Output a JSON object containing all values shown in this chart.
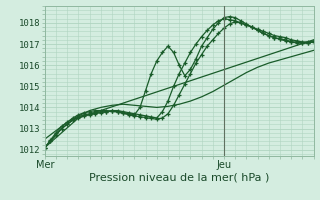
{
  "xlabel": "Pression niveau de la mer( hPa )",
  "background_color": "#d4ede0",
  "grid_color": "#b0d4c0",
  "line_color": "#1a5c2a",
  "vline_color": "#607060",
  "ylim": [
    1011.7,
    1018.8
  ],
  "xlim": [
    0,
    48
  ],
  "yticks": [
    1012,
    1013,
    1014,
    1015,
    1016,
    1017,
    1018
  ],
  "xtick_positions": [
    0,
    32
  ],
  "xtick_labels": [
    "Mer",
    "Jeu"
  ],
  "vline_x": 32,
  "series": [
    {
      "x": [
        0,
        1,
        2,
        3,
        4,
        5,
        6,
        7,
        8,
        9,
        10,
        11,
        12,
        13,
        14,
        15,
        16,
        17,
        18,
        19,
        20,
        21,
        22,
        23,
        24,
        25,
        26,
        27,
        28,
        29,
        30,
        31,
        32,
        33,
        34,
        35,
        36,
        37,
        38,
        39,
        40,
        41,
        42,
        43,
        44,
        45,
        46,
        47,
        48
      ],
      "y": [
        1012.1,
        1012.4,
        1012.7,
        1013.0,
        1013.2,
        1013.4,
        1013.5,
        1013.6,
        1013.65,
        1013.7,
        1013.75,
        1013.8,
        1013.85,
        1013.85,
        1013.8,
        1013.75,
        1013.7,
        1013.65,
        1013.6,
        1013.55,
        1013.5,
        1013.8,
        1014.3,
        1015.0,
        1015.6,
        1016.1,
        1016.6,
        1017.0,
        1017.35,
        1017.65,
        1017.9,
        1018.1,
        1018.2,
        1018.15,
        1018.1,
        1018.0,
        1017.9,
        1017.8,
        1017.7,
        1017.6,
        1017.5,
        1017.4,
        1017.35,
        1017.3,
        1017.2,
        1017.15,
        1017.1,
        1017.1,
        1017.15
      ],
      "marker": true
    },
    {
      "x": [
        0,
        1,
        2,
        3,
        4,
        5,
        6,
        7,
        8,
        9,
        10,
        11,
        12,
        13,
        14,
        15,
        16,
        17,
        18,
        19,
        20,
        21,
        22,
        23,
        24,
        25,
        26,
        27,
        28,
        29,
        30,
        31,
        32,
        33,
        34,
        35,
        36,
        37,
        38,
        39,
        40,
        41,
        42,
        43,
        44,
        45,
        46,
        47,
        48
      ],
      "y": [
        1012.1,
        1012.4,
        1012.7,
        1013.0,
        1013.2,
        1013.4,
        1013.55,
        1013.65,
        1013.7,
        1013.75,
        1013.78,
        1013.8,
        1013.82,
        1013.8,
        1013.75,
        1013.7,
        1013.65,
        1014.0,
        1014.8,
        1015.6,
        1016.2,
        1016.6,
        1016.9,
        1016.6,
        1016.0,
        1015.5,
        1015.8,
        1016.3,
        1016.9,
        1017.3,
        1017.7,
        1018.0,
        1018.25,
        1018.3,
        1018.25,
        1018.1,
        1017.95,
        1017.8,
        1017.65,
        1017.5,
        1017.4,
        1017.3,
        1017.25,
        1017.2,
        1017.1,
        1017.1,
        1017.05,
        1017.05,
        1017.1
      ],
      "marker": true
    },
    {
      "x": [
        0,
        1,
        2,
        3,
        4,
        5,
        6,
        7,
        8,
        9,
        10,
        11,
        12,
        13,
        14,
        15,
        16,
        17,
        18,
        19,
        20,
        21,
        22,
        23,
        24,
        25,
        26,
        27,
        28,
        29,
        30,
        31,
        32,
        33,
        34,
        35,
        36,
        37,
        38,
        39,
        40,
        41,
        42,
        43,
        44,
        45,
        46,
        47,
        48
      ],
      "y": [
        1012.1,
        1012.45,
        1012.8,
        1013.1,
        1013.3,
        1013.5,
        1013.65,
        1013.75,
        1013.8,
        1013.85,
        1013.85,
        1013.85,
        1013.82,
        1013.78,
        1013.72,
        1013.65,
        1013.6,
        1013.56,
        1013.52,
        1013.48,
        1013.44,
        1013.5,
        1013.7,
        1014.1,
        1014.6,
        1015.1,
        1015.6,
        1016.1,
        1016.5,
        1016.9,
        1017.2,
        1017.5,
        1017.75,
        1017.95,
        1018.05,
        1018.0,
        1017.9,
        1017.8,
        1017.65,
        1017.5,
        1017.4,
        1017.3,
        1017.22,
        1017.15,
        1017.1,
        1017.05,
        1017.05,
        1017.05,
        1017.1
      ],
      "marker": true
    },
    {
      "x": [
        0,
        6,
        48
      ],
      "y": [
        1012.1,
        1013.5,
        1017.2
      ],
      "marker": false
    },
    {
      "x": [
        0,
        2,
        4,
        6,
        8,
        10,
        12,
        14,
        16,
        18,
        20,
        22,
        24,
        26,
        28,
        30,
        32,
        34,
        36,
        38,
        40,
        42,
        44,
        46,
        48
      ],
      "y": [
        1012.5,
        1012.9,
        1013.3,
        1013.6,
        1013.85,
        1014.0,
        1014.1,
        1014.15,
        1014.1,
        1014.05,
        1014.0,
        1014.05,
        1014.15,
        1014.3,
        1014.5,
        1014.75,
        1015.05,
        1015.35,
        1015.65,
        1015.9,
        1016.1,
        1016.25,
        1016.4,
        1016.55,
        1016.7
      ],
      "marker": false
    }
  ]
}
